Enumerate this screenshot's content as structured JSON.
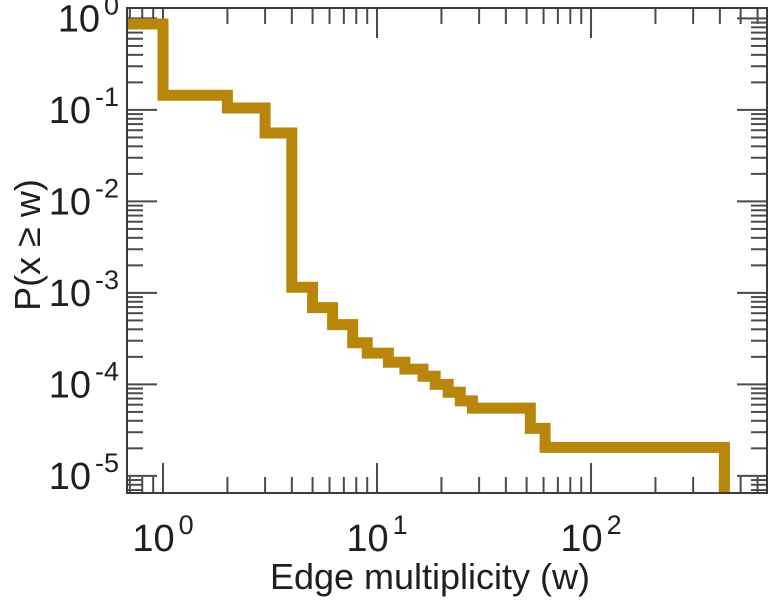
{
  "figure": {
    "background": "#ffffff"
  },
  "chart_data": {
    "type": "line",
    "subtype": "ccdf-step-staircase",
    "title": "",
    "xlabel": "Edge multiplicity (w)",
    "ylabel": "P(x ≥ w)",
    "x_scale": "log",
    "y_scale": "log",
    "xlim": [
      0.679,
      664
    ],
    "ylim": [
      6.5e-06,
      1.3
    ],
    "x_major_ticks": [
      1,
      10,
      100
    ],
    "y_major_ticks": [
      1,
      0.1,
      0.01,
      0.001,
      0.0001,
      1e-05
    ],
    "grid": false,
    "legend": "none",
    "line_color": "#B8860B",
    "line_width": 11,
    "start": {
      "x": 0.679,
      "p": 0.87
    },
    "steps": [
      [
        1,
        0.145
      ],
      [
        2,
        0.105
      ],
      [
        3,
        0.056
      ],
      [
        4,
        0.00115
      ],
      [
        5,
        0.00069
      ],
      [
        6.2,
        0.00045
      ],
      [
        7.7,
        0.000285
      ],
      [
        9,
        0.00022
      ],
      [
        11.3,
        0.000175
      ],
      [
        13.5,
        0.000147
      ],
      [
        16.4,
        0.000123
      ],
      [
        18.7,
        0.0001
      ],
      [
        21.5,
        8.2e-05
      ],
      [
        24.5,
        6.6e-05
      ],
      [
        27.9,
        5.5e-05
      ],
      [
        52,
        3.3e-05
      ],
      [
        61,
        2.05e-05
      ],
      [
        420,
        6.5e-06
      ]
    ]
  },
  "axes_style": {
    "axis_color": "#3c3c3c",
    "tick_color": "#4a4a4a",
    "text_color": "#1f1f1f",
    "tick_major_len": 30,
    "tick_minor_len": 16
  }
}
